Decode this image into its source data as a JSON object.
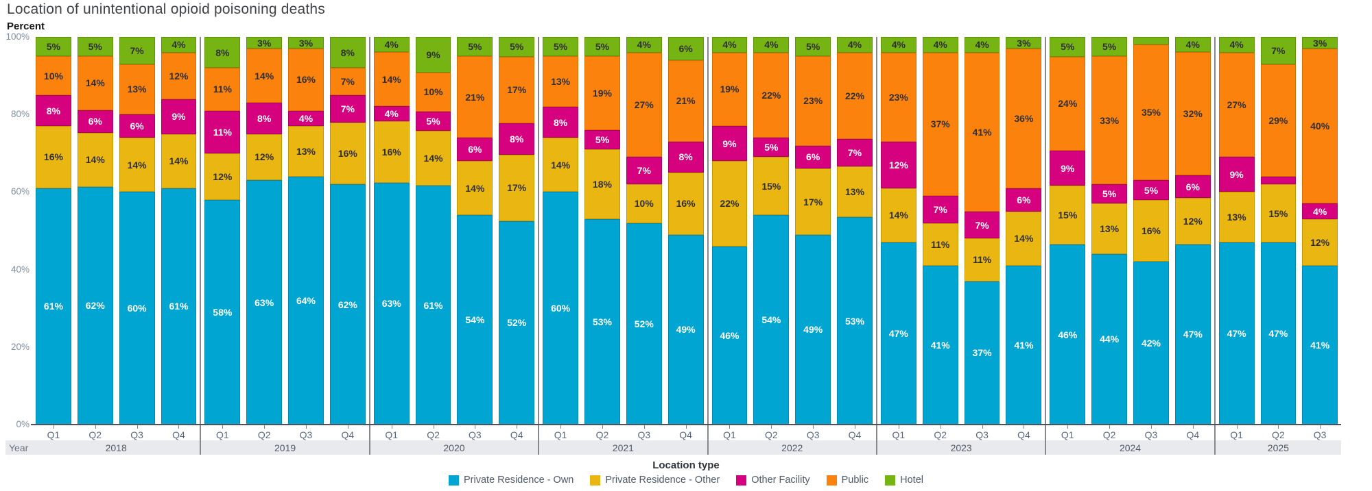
{
  "title": "Location of unintentional opioid poisoning deaths",
  "y_axis": {
    "label": "Percent",
    "ticks": [
      "100%",
      "80%",
      "60%",
      "40%",
      "20%",
      "0%"
    ],
    "tick_values": [
      100,
      80,
      60,
      40,
      20,
      0
    ]
  },
  "x_axis": {
    "row_label": "Year"
  },
  "legend": {
    "title": "Location type",
    "items": [
      {
        "key": "private-residence-own",
        "label": "Private Residence - Own",
        "color": "#00a5d2"
      },
      {
        "key": "private-residence-other",
        "label": "Private Residence - Other",
        "color": "#eab612"
      },
      {
        "key": "other-facility",
        "label": "Other Facility",
        "color": "#d6017f"
      },
      {
        "key": "public",
        "label": "Public",
        "color": "#fb830d"
      },
      {
        "key": "hotel",
        "label": "Hotel",
        "color": "#76b414"
      }
    ]
  },
  "chart_data": {
    "type": "bar",
    "stacked": true,
    "unit": "%",
    "ylim": [
      0,
      100
    ],
    "title": "Location of unintentional opioid poisoning deaths",
    "ylabel": "Percent",
    "label_min_value": 3,
    "series_names": [
      "Private Residence - Own",
      "Private Residence - Other",
      "Other Facility",
      "Public",
      "Hotel"
    ],
    "series_keys": [
      "private-residence-own",
      "private-residence-other",
      "other-facility",
      "public",
      "hotel"
    ],
    "series_colors": [
      "#00a5d2",
      "#eab612",
      "#d6017f",
      "#fb830d",
      "#76b414"
    ],
    "series_border_colors": [
      "#0289b3",
      "#c79700",
      "#ab0065",
      "#d96d00",
      "#5f9407"
    ],
    "series_label_text_colors": [
      "#ffffff",
      "#2f2f2f",
      "#ffffff",
      "#2f2f2f",
      "#2f2f2f"
    ],
    "groups": [
      {
        "year": "2018",
        "quarters": [
          "Q1",
          "Q2",
          "Q3",
          "Q4"
        ],
        "values": [
          [
            61,
            16,
            8,
            10,
            5
          ],
          [
            62,
            14,
            6,
            14,
            5
          ],
          [
            60,
            14,
            6,
            13,
            7
          ],
          [
            61,
            14,
            9,
            12,
            4
          ]
        ]
      },
      {
        "year": "2019",
        "quarters": [
          "Q1",
          "Q2",
          "Q3",
          "Q4"
        ],
        "values": [
          [
            58,
            12,
            11,
            11,
            8
          ],
          [
            63,
            12,
            8,
            14,
            3
          ],
          [
            64,
            13,
            4,
            16,
            3
          ],
          [
            62,
            16,
            7,
            7,
            8
          ]
        ]
      },
      {
        "year": "2020",
        "quarters": [
          "Q1",
          "Q2",
          "Q3",
          "Q4"
        ],
        "values": [
          [
            63,
            16,
            4,
            14,
            4
          ],
          [
            61,
            14,
            5,
            10,
            9
          ],
          [
            54,
            14,
            6,
            21,
            5
          ],
          [
            52,
            17,
            8,
            17,
            5
          ]
        ]
      },
      {
        "year": "2021",
        "quarters": [
          "Q1",
          "Q2",
          "Q3",
          "Q4"
        ],
        "values": [
          [
            60,
            14,
            8,
            13,
            5
          ],
          [
            53,
            18,
            5,
            19,
            5
          ],
          [
            52,
            10,
            7,
            27,
            4
          ],
          [
            49,
            16,
            8,
            21,
            6
          ]
        ]
      },
      {
        "year": "2022",
        "quarters": [
          "Q1",
          "Q2",
          "Q3",
          "Q4"
        ],
        "values": [
          [
            46,
            22,
            9,
            19,
            4
          ],
          [
            54,
            15,
            5,
            22,
            4
          ],
          [
            49,
            17,
            6,
            23,
            5
          ],
          [
            53,
            13,
            7,
            22,
            4
          ]
        ]
      },
      {
        "year": "2023",
        "quarters": [
          "Q1",
          "Q2",
          "Q3",
          "Q4"
        ],
        "values": [
          [
            47,
            14,
            12,
            23,
            4
          ],
          [
            41,
            11,
            7,
            37,
            4
          ],
          [
            37,
            11,
            7,
            41,
            4
          ],
          [
            41,
            14,
            6,
            36,
            3
          ]
        ]
      },
      {
        "year": "2024",
        "quarters": [
          "Q1",
          "Q2",
          "Q3",
          "Q4"
        ],
        "values": [
          [
            46,
            15,
            9,
            24,
            5
          ],
          [
            44,
            13,
            5,
            33,
            5
          ],
          [
            42,
            16,
            5,
            35,
            2
          ],
          [
            47,
            12,
            6,
            32,
            4
          ]
        ]
      },
      {
        "year": "2025",
        "quarters": [
          "Q1",
          "Q2",
          "Q3"
        ],
        "values": [
          [
            47,
            13,
            9,
            27,
            4
          ],
          [
            47,
            15,
            2,
            29,
            7
          ],
          [
            41,
            12,
            4,
            40,
            3
          ]
        ]
      }
    ]
  }
}
